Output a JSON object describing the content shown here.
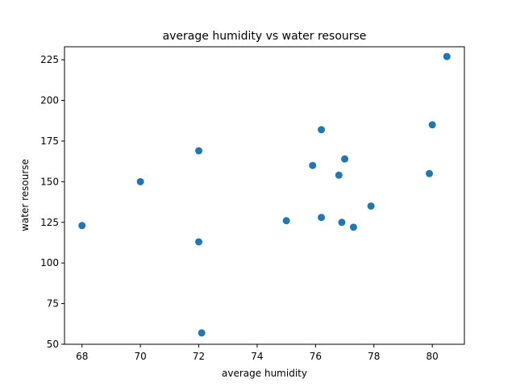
{
  "chart_data": {
    "type": "scatter",
    "title": "average humidity vs water resourse",
    "xlabel": "average humidity",
    "ylabel": "water resourse",
    "xlim": [
      67.4,
      81.1
    ],
    "ylim": [
      50,
      233
    ],
    "xticks": [
      68,
      70,
      72,
      74,
      76,
      78,
      80
    ],
    "yticks": [
      50,
      75,
      100,
      125,
      150,
      175,
      200,
      225
    ],
    "grid": false,
    "marker_color": "#1f77b4",
    "points": [
      {
        "x": 68.0,
        "y": 123
      },
      {
        "x": 70.0,
        "y": 150
      },
      {
        "x": 72.0,
        "y": 169
      },
      {
        "x": 72.0,
        "y": 113
      },
      {
        "x": 72.1,
        "y": 57
      },
      {
        "x": 75.0,
        "y": 126
      },
      {
        "x": 75.9,
        "y": 160
      },
      {
        "x": 76.2,
        "y": 182
      },
      {
        "x": 76.2,
        "y": 128
      },
      {
        "x": 76.8,
        "y": 154
      },
      {
        "x": 76.9,
        "y": 125
      },
      {
        "x": 77.0,
        "y": 164
      },
      {
        "x": 77.3,
        "y": 122
      },
      {
        "x": 77.9,
        "y": 135
      },
      {
        "x": 79.9,
        "y": 155
      },
      {
        "x": 80.0,
        "y": 185
      },
      {
        "x": 80.5,
        "y": 227
      }
    ]
  }
}
